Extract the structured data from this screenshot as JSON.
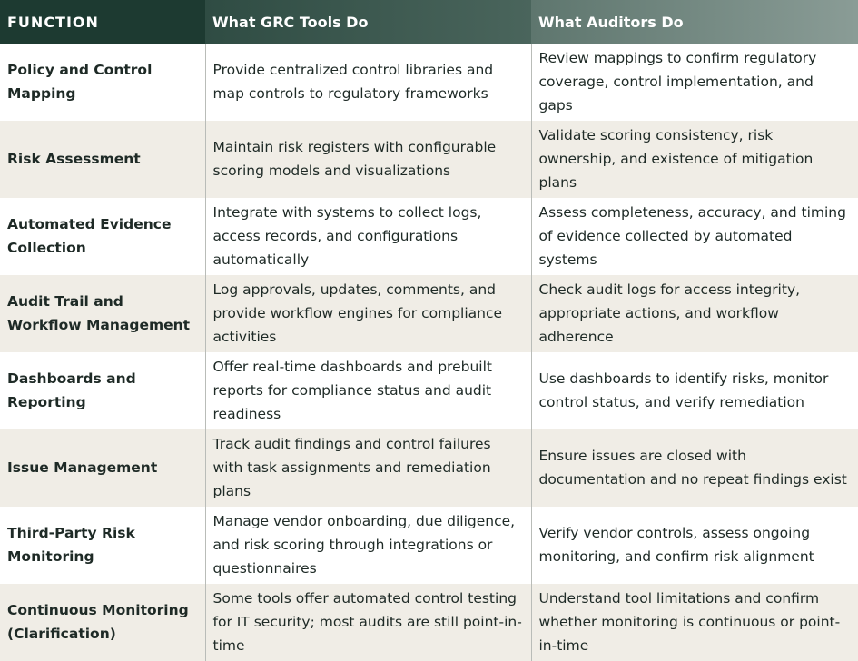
{
  "header": {
    "columns": [
      "FUNCTION",
      "What GRC Tools Do",
      "What Auditors Do"
    ]
  },
  "table": {
    "rows": [
      [
        "Policy and Control Mapping",
        "Provide centralized control libraries and map controls to regulatory frameworks",
        "Review mappings to confirm regulatory coverage, control implementation, and gaps"
      ],
      [
        "Risk Assessment",
        "Maintain risk registers with configurable scoring models and visualizations",
        "Validate scoring consistency, risk ownership, and existence of mitigation plans"
      ],
      [
        "Automated Evidence Collection",
        "Integrate with systems to collect logs, access records, and configurations automatically",
        "Assess completeness, accuracy, and timing of evidence collected by automated systems"
      ],
      [
        "Audit Trail and Workflow Management",
        "Log approvals, updates, comments, and provide workflow engines for compliance activities",
        "Check audit logs for access integrity, appropriate actions, and workflow adherence"
      ],
      [
        "Dashboards and Reporting",
        "Offer real-time dashboards and prebuilt reports for compliance status and audit readiness",
        "Use dashboards to identify risks, monitor control status, and verify remediation"
      ],
      [
        "Issue Management",
        "Track audit findings and control failures with task assignments and remediation plans",
        "Ensure issues are closed with documentation and no repeat findings exist"
      ],
      [
        "Third-Party Risk Monitoring",
        "Manage vendor onboarding, due diligence, and risk scoring through integrations or questionnaires",
        "Verify vendor controls, assess ongoing monitoring, and confirm risk alignment"
      ],
      [
        "Continuous Monitoring (Clarification)",
        "Some tools offer automated control testing for IT security; most audits are still point-in-time",
        "Understand tool limitations and confirm whether monitoring is continuous or point-in-time"
      ]
    ]
  }
}
